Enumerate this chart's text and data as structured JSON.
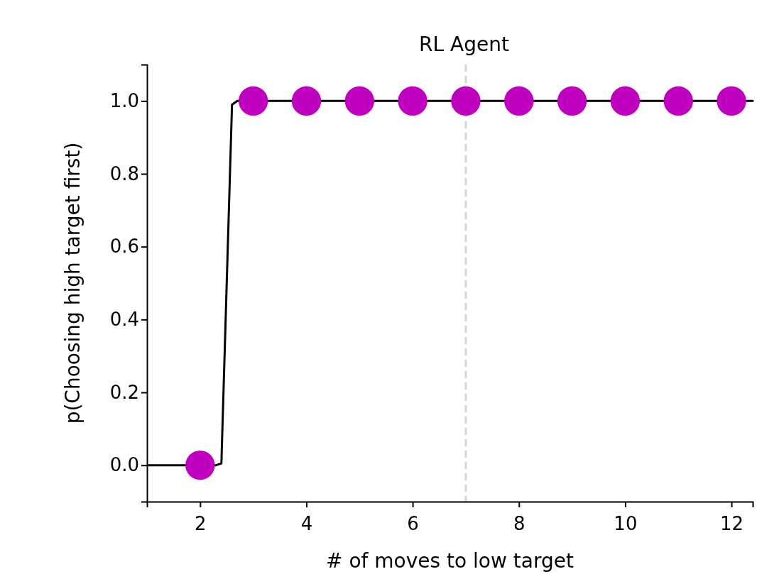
{
  "chart_data": {
    "type": "scatter",
    "title": "RL Agent",
    "xlabel": "# of moves to low target",
    "ylabel": "p(Choosing high target first)",
    "xlim": [
      1,
      12.4
    ],
    "xticks": [
      2,
      4,
      6,
      8,
      10,
      12
    ],
    "ylim": [
      -0.1,
      1.1
    ],
    "yticks": [
      {
        "value": 0,
        "label": "0.0"
      },
      0.2,
      0.4,
      0.6,
      0.8,
      {
        "value": 1,
        "label": "1.0"
      }
    ],
    "grid": false,
    "marker": "circle",
    "series": [
      {
        "type": "line",
        "marker": "none",
        "color": "#000000",
        "x": [
          1,
          2.3,
          2.4,
          2.6,
          2.7,
          12.4
        ],
        "values": [
          0,
          0,
          0.005,
          0.99,
          1,
          1
        ]
      },
      {
        "color": "#bf00bf",
        "x": [
          2,
          3,
          4,
          5,
          6,
          7,
          8,
          9,
          10,
          11,
          12
        ],
        "values": [
          0,
          1,
          1,
          1,
          1,
          1,
          1,
          1,
          1,
          1,
          1
        ]
      }
    ],
    "ref_lines": [
      {
        "axis": "x",
        "value": 7,
        "color": "#d3d3d3",
        "line_style": "dashed"
      }
    ]
  }
}
